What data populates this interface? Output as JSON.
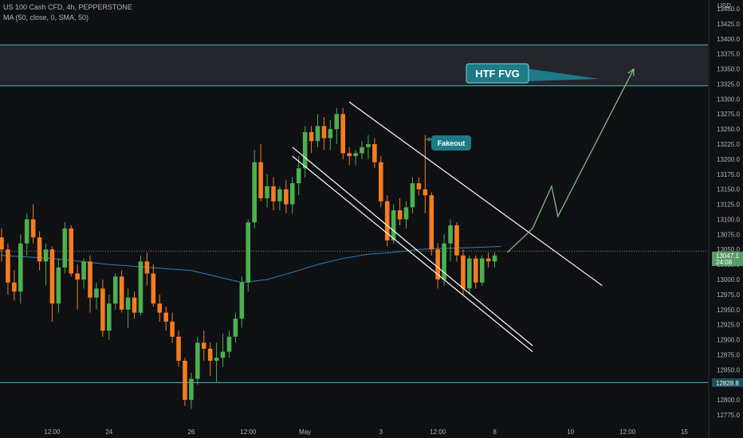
{
  "header": {
    "symbol_line": "US 100 Cash CFD, 4h, PEPPERSTONE",
    "indicator_line": "MA (50, close, 0, SMA, 50)"
  },
  "price_axis": {
    "currency": "USD",
    "current_price_label": "13047.1",
    "countdown_label": "24:08",
    "level_label": "12828.8"
  },
  "annotations": {
    "htf_label": "HTF FVG",
    "fakeout_label": "Fakeout"
  },
  "colors": {
    "background": "#0f1014",
    "bullish": "#4caf50",
    "bearish": "#f57c1f",
    "ma_line": "#2e7fbf",
    "zone_fill": "#24262b",
    "zone_border": "#4fb3c1",
    "label_fill": "#1e7a87",
    "projection": "#8bc48b"
  },
  "chart_data": {
    "type": "candlestick",
    "title": "US 100 Cash CFD, 4h, PEPPERSTONE",
    "ylim": [
      12760,
      13490
    ],
    "y_ticks": [
      12775,
      12800,
      12825,
      12850,
      12875,
      12900,
      12925,
      12950,
      12975,
      13000,
      13025,
      13050,
      13075,
      13100,
      13125,
      13150,
      13175,
      13200,
      13225,
      13250,
      13275,
      13300,
      13325,
      13350,
      13375,
      13400,
      13425,
      13450
    ],
    "x_tick_labels": [
      {
        "i": 8,
        "label": "12:00"
      },
      {
        "i": 17,
        "label": "24"
      },
      {
        "i": 30,
        "label": "26"
      },
      {
        "i": 39,
        "label": "12:00"
      },
      {
        "i": 48,
        "label": "May"
      },
      {
        "i": 60,
        "label": "3"
      },
      {
        "i": 69,
        "label": "12:00"
      },
      {
        "i": 78,
        "label": "8"
      },
      {
        "i": 90,
        "label": "10"
      },
      {
        "i": 99,
        "label": "12:00"
      },
      {
        "i": 108,
        "label": "15"
      }
    ],
    "candles": [
      [
        13070,
        13085,
        13030,
        13050
      ],
      [
        13050,
        13060,
        12975,
        12995
      ],
      [
        12995,
        13015,
        12965,
        12980
      ],
      [
        12980,
        13075,
        12960,
        13060
      ],
      [
        13060,
        13110,
        13040,
        13100
      ],
      [
        13100,
        13125,
        13060,
        13070
      ],
      [
        13070,
        13080,
        13015,
        13030
      ],
      [
        13030,
        13060,
        12990,
        13050
      ],
      [
        13050,
        13055,
        12930,
        12960
      ],
      [
        12960,
        13035,
        12945,
        13020
      ],
      [
        13020,
        13095,
        13010,
        13085
      ],
      [
        13085,
        13090,
        13005,
        13010
      ],
      [
        13010,
        13025,
        12950,
        13000
      ],
      [
        13000,
        13035,
        12985,
        13030
      ],
      [
        13030,
        13040,
        12945,
        12970
      ],
      [
        12970,
        12995,
        12950,
        12985
      ],
      [
        12985,
        13000,
        12905,
        12915
      ],
      [
        12915,
        12975,
        12900,
        12960
      ],
      [
        12960,
        13010,
        12950,
        13005
      ],
      [
        13005,
        13015,
        12945,
        12950
      ],
      [
        12950,
        12985,
        12920,
        12970
      ],
      [
        12970,
        12980,
        12935,
        12945
      ],
      [
        12945,
        13040,
        12940,
        13030
      ],
      [
        13030,
        13045,
        12990,
        13010
      ],
      [
        13010,
        13025,
        12955,
        12960
      ],
      [
        12960,
        12975,
        12930,
        12945
      ],
      [
        12945,
        12955,
        12915,
        12930
      ],
      [
        12930,
        12945,
        12895,
        12905
      ],
      [
        12905,
        12915,
        12855,
        12865
      ],
      [
        12865,
        12870,
        12790,
        12800
      ],
      [
        12800,
        12845,
        12785,
        12835
      ],
      [
        12835,
        12905,
        12825,
        12895
      ],
      [
        12895,
        12915,
        12865,
        12885
      ],
      [
        12885,
        12895,
        12840,
        12865
      ],
      [
        12865,
        12895,
        12830,
        12870
      ],
      [
        12870,
        12910,
        12855,
        12880
      ],
      [
        12880,
        12915,
        12870,
        12905
      ],
      [
        12905,
        12945,
        12895,
        12935
      ],
      [
        12935,
        13005,
        12920,
        12995
      ],
      [
        12995,
        13100,
        12980,
        13095
      ],
      [
        13095,
        13215,
        13085,
        13195
      ],
      [
        13195,
        13225,
        13130,
        13135
      ],
      [
        13135,
        13175,
        13120,
        13155
      ],
      [
        13155,
        13170,
        13115,
        13130
      ],
      [
        13130,
        13155,
        13115,
        13150
      ],
      [
        13150,
        13165,
        13110,
        13125
      ],
      [
        13125,
        13170,
        13110,
        13160
      ],
      [
        13160,
        13205,
        13140,
        13185
      ],
      [
        13185,
        13255,
        13170,
        13245
      ],
      [
        13245,
        13255,
        13210,
        13230
      ],
      [
        13230,
        13275,
        13220,
        13255
      ],
      [
        13255,
        13270,
        13215,
        13235
      ],
      [
        13235,
        13265,
        13215,
        13250
      ],
      [
        13250,
        13285,
        13225,
        13275
      ],
      [
        13275,
        13285,
        13200,
        13210
      ],
      [
        13210,
        13220,
        13190,
        13205
      ],
      [
        13205,
        13215,
        13190,
        13210
      ],
      [
        13210,
        13230,
        13200,
        13220
      ],
      [
        13220,
        13240,
        13200,
        13225
      ],
      [
        13225,
        13235,
        13185,
        13195
      ],
      [
        13195,
        13205,
        13120,
        13130
      ],
      [
        13130,
        13140,
        13055,
        13065
      ],
      [
        13065,
        13125,
        13060,
        13115
      ],
      [
        13115,
        13135,
        13090,
        13100
      ],
      [
        13100,
        13130,
        13085,
        13120
      ],
      [
        13120,
        13170,
        13110,
        13160
      ],
      [
        13160,
        13170,
        13140,
        13150
      ],
      [
        13150,
        13240,
        13110,
        13140
      ],
      [
        13140,
        13145,
        13040,
        13050
      ],
      [
        13050,
        13060,
        12985,
        13000
      ],
      [
        13000,
        13075,
        12990,
        13060
      ],
      [
        13060,
        13100,
        13030,
        13090
      ],
      [
        13090,
        13095,
        13030,
        13040
      ],
      [
        13040,
        13050,
        12975,
        12985
      ],
      [
        12985,
        13040,
        12975,
        13035
      ],
      [
        13035,
        13040,
        12985,
        12995
      ],
      [
        12995,
        13040,
        12990,
        13035
      ],
      [
        13035,
        13045,
        13020,
        13030
      ],
      [
        13030,
        13045,
        13020,
        13040
      ]
    ],
    "moving_average": [
      [
        0,
        13040
      ],
      [
        8,
        13035
      ],
      [
        17,
        13025
      ],
      [
        26,
        13018
      ],
      [
        30,
        13015
      ],
      [
        34,
        13005
      ],
      [
        38,
        12995
      ],
      [
        42,
        13000
      ],
      [
        46,
        13012
      ],
      [
        50,
        13025
      ],
      [
        54,
        13035
      ],
      [
        58,
        13042
      ],
      [
        62,
        13045
      ],
      [
        66,
        13050
      ],
      [
        70,
        13052
      ],
      [
        74,
        13053
      ],
      [
        79,
        13055
      ]
    ],
    "level_lines": [
      13047.1,
      12828.8
    ],
    "htf_zone": [
      13322,
      13390
    ],
    "descending_channel": [
      {
        "points": [
          [
            55,
            13295
          ],
          [
            95,
            12990
          ]
        ]
      },
      {
        "points": [
          [
            46,
            13205
          ],
          [
            84,
            12880
          ]
        ]
      },
      {
        "points": [
          [
            46,
            13220
          ],
          [
            84,
            12890
          ]
        ]
      }
    ],
    "projection_path": [
      [
        80,
        13045
      ],
      [
        84,
        13085
      ],
      [
        87,
        13155
      ],
      [
        88,
        13105
      ],
      [
        100,
        13350
      ]
    ],
    "fakeout_point": [
      67,
      13233
    ]
  }
}
